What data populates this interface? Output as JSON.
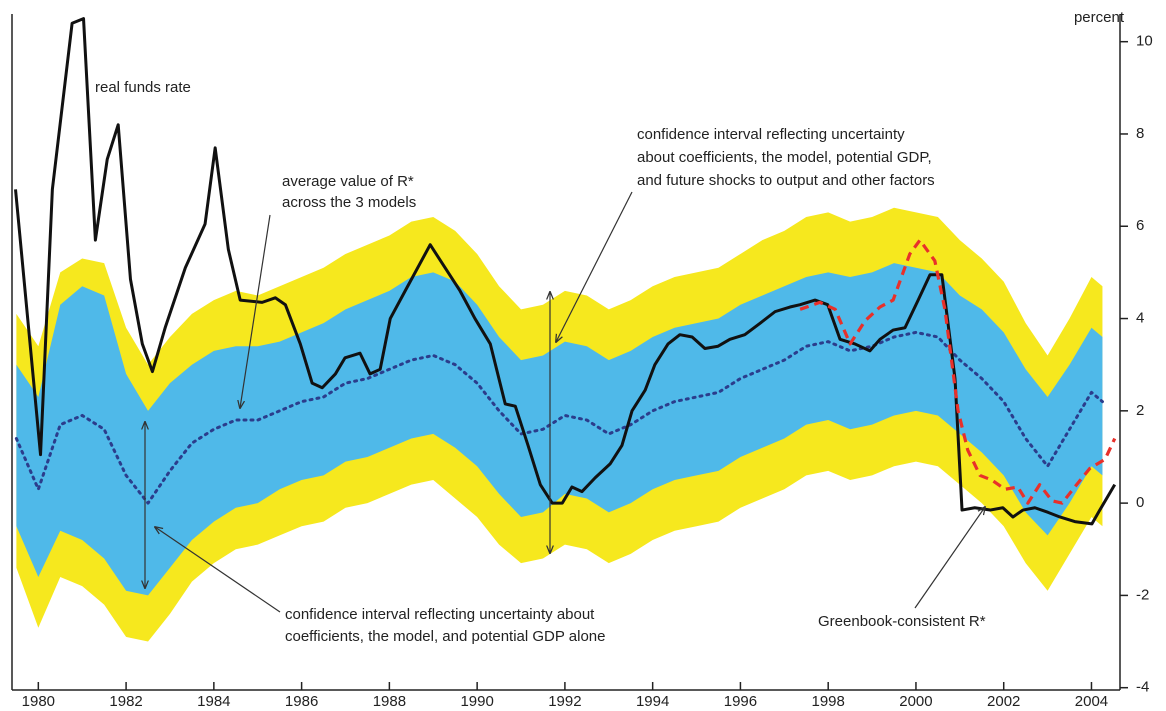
{
  "chart_data": {
    "type": "line",
    "y_label": "percent",
    "xlim": [
      1979.4,
      2004.65
    ],
    "ylim": [
      -4.05,
      10.6
    ],
    "xticks": [
      1980,
      1982,
      1984,
      1986,
      1988,
      1990,
      1992,
      1994,
      1996,
      1998,
      2000,
      2002,
      2004
    ],
    "yticks": [
      -4,
      -2,
      0,
      2,
      4,
      6,
      8,
      10
    ],
    "grid": false,
    "x": [
      1979.5,
      1980,
      1980.5,
      1981,
      1981.5,
      1982,
      1982.5,
      1983,
      1983.5,
      1984,
      1984.5,
      1985,
      1985.5,
      1986,
      1986.5,
      1987,
      1987.5,
      1988,
      1988.5,
      1989,
      1989.5,
      1990,
      1990.5,
      1991,
      1991.5,
      1992,
      1992.5,
      1993,
      1993.5,
      1994,
      1994.5,
      1995,
      1995.5,
      1996,
      1996.5,
      1997,
      1997.5,
      1998,
      1998.5,
      1999,
      1999.5,
      2000,
      2000.5,
      2001,
      2001.5,
      2002,
      2002.5,
      2003,
      2003.5,
      2004,
      2004.25
    ],
    "bands": [
      {
        "color": "#f6e81e",
        "upper": [
          4.1,
          3.4,
          5.0,
          5.3,
          5.2,
          3.8,
          3.0,
          3.6,
          4.1,
          4.4,
          4.6,
          4.5,
          4.7,
          4.9,
          5.1,
          5.4,
          5.6,
          5.8,
          6.1,
          6.2,
          5.9,
          5.4,
          4.7,
          4.2,
          4.3,
          4.6,
          4.5,
          4.2,
          4.4,
          4.7,
          4.9,
          5.0,
          5.1,
          5.4,
          5.7,
          5.9,
          6.2,
          6.3,
          6.1,
          6.2,
          6.4,
          6.3,
          6.2,
          5.7,
          5.3,
          4.8,
          3.9,
          3.2,
          4.0,
          4.9,
          4.7
        ],
        "lower": [
          -1.4,
          -2.7,
          -1.6,
          -1.8,
          -2.2,
          -2.9,
          -3.0,
          -2.4,
          -1.7,
          -1.3,
          -1.0,
          -0.9,
          -0.7,
          -0.5,
          -0.4,
          -0.1,
          0.0,
          0.2,
          0.4,
          0.5,
          0.1,
          -0.3,
          -0.9,
          -1.3,
          -1.2,
          -0.9,
          -1.0,
          -1.3,
          -1.1,
          -0.8,
          -0.6,
          -0.5,
          -0.4,
          -0.1,
          0.1,
          0.3,
          0.6,
          0.7,
          0.5,
          0.6,
          0.8,
          0.9,
          0.8,
          0.4,
          0.0,
          -0.5,
          -1.3,
          -1.9,
          -1.1,
          -0.3,
          -0.5
        ]
      },
      {
        "color": "#4fb9e9",
        "upper": [
          3.0,
          2.3,
          4.3,
          4.7,
          4.5,
          2.8,
          2.0,
          2.6,
          3.0,
          3.3,
          3.4,
          3.4,
          3.5,
          3.7,
          3.9,
          4.2,
          4.4,
          4.6,
          4.9,
          5.0,
          4.8,
          4.3,
          3.6,
          3.1,
          3.2,
          3.5,
          3.4,
          3.1,
          3.3,
          3.6,
          3.8,
          3.9,
          4.0,
          4.3,
          4.5,
          4.7,
          4.9,
          5.0,
          4.9,
          5.0,
          5.2,
          5.1,
          5.0,
          4.5,
          4.2,
          3.7,
          2.9,
          2.3,
          3.0,
          3.8,
          3.6
        ],
        "lower": [
          -0.5,
          -1.6,
          -0.6,
          -0.8,
          -1.2,
          -1.9,
          -2.0,
          -1.4,
          -0.8,
          -0.4,
          -0.1,
          0.0,
          0.3,
          0.5,
          0.6,
          0.9,
          1.0,
          1.2,
          1.4,
          1.5,
          1.2,
          0.8,
          0.2,
          -0.3,
          -0.2,
          0.2,
          0.1,
          -0.2,
          0.0,
          0.3,
          0.5,
          0.6,
          0.7,
          1.0,
          1.2,
          1.4,
          1.7,
          1.8,
          1.6,
          1.7,
          1.9,
          2.0,
          1.9,
          1.5,
          1.1,
          0.6,
          -0.2,
          -0.7,
          0.0,
          0.8,
          0.6
        ]
      }
    ],
    "series": [
      {
        "color": "#2b3d8c",
        "style": "dotted",
        "values": [
          1.4,
          0.3,
          1.7,
          1.9,
          1.6,
          0.6,
          0.0,
          0.7,
          1.3,
          1.6,
          1.8,
          1.8,
          2.0,
          2.2,
          2.3,
          2.6,
          2.7,
          2.9,
          3.1,
          3.2,
          3.0,
          2.6,
          2.0,
          1.5,
          1.6,
          1.9,
          1.8,
          1.5,
          1.7,
          2.0,
          2.2,
          2.3,
          2.4,
          2.7,
          2.9,
          3.1,
          3.4,
          3.5,
          3.3,
          3.4,
          3.6,
          3.7,
          3.6,
          3.1,
          2.7,
          2.2,
          1.4,
          0.8,
          1.6,
          2.4,
          2.2
        ]
      },
      {
        "color": "#111111",
        "style": "solid",
        "x": [
          1979.48,
          1980.05,
          1980.32,
          1980.77,
          1981.03,
          1981.3,
          1981.57,
          1981.82,
          1982.1,
          1982.37,
          1982.6,
          1982.89,
          1983.35,
          1983.8,
          1984.03,
          1984.33,
          1984.6,
          1985.1,
          1985.4,
          1985.63,
          1985.97,
          1986.24,
          1986.47,
          1986.77,
          1986.99,
          1987.33,
          1987.56,
          1987.79,
          1988.02,
          1988.36,
          1988.93,
          1989.61,
          1989.95,
          1990.3,
          1990.64,
          1990.87,
          1991.16,
          1991.44,
          1991.71,
          1991.94,
          1992.16,
          1992.39,
          1992.69,
          1993.03,
          1993.3,
          1993.53,
          1993.83,
          1994.05,
          1994.35,
          1994.62,
          1994.9,
          1995.19,
          1995.49,
          1995.76,
          1996.1,
          1996.45,
          1996.79,
          1997.13,
          1997.36,
          1997.7,
          1997.99,
          1998.27,
          1998.61,
          1998.95,
          1999.18,
          1999.48,
          1999.75,
          2000.05,
          2000.32,
          2000.59,
          2000.89,
          2001.05,
          2001.34,
          2001.69,
          2001.98,
          2002.21,
          2002.44,
          2002.71,
          2003.01,
          2003.28,
          2003.62,
          2004.01,
          2004.19,
          2004.53
        ],
        "values": [
          6.8,
          1.05,
          6.8,
          10.4,
          10.5,
          5.7,
          7.45,
          8.2,
          4.85,
          3.45,
          2.85,
          3.8,
          5.1,
          6.05,
          7.7,
          5.5,
          4.4,
          4.35,
          4.45,
          4.3,
          3.45,
          2.6,
          2.5,
          2.8,
          3.15,
          3.25,
          2.8,
          2.9,
          4.0,
          4.6,
          5.6,
          4.6,
          4.0,
          3.45,
          2.15,
          2.1,
          1.25,
          0.4,
          0.0,
          0.0,
          0.35,
          0.25,
          0.55,
          0.85,
          1.25,
          2.0,
          2.45,
          3.0,
          3.45,
          3.65,
          3.6,
          3.35,
          3.4,
          3.55,
          3.65,
          3.9,
          4.15,
          4.25,
          4.3,
          4.4,
          4.3,
          3.55,
          3.45,
          3.3,
          3.55,
          3.75,
          3.8,
          4.4,
          4.95,
          4.95,
          2.7,
          -0.15,
          -0.1,
          -0.15,
          -0.1,
          -0.3,
          -0.15,
          -0.1,
          -0.2,
          -0.3,
          -0.4,
          -0.45,
          -0.15,
          0.4
        ]
      },
      {
        "color": "#e8302a",
        "style": "dashed",
        "x": [
          1997.36,
          1997.81,
          1998.16,
          1998.5,
          1998.84,
          1999.18,
          1999.48,
          1999.86,
          2000.09,
          2000.43,
          2000.66,
          2000.96,
          2001.18,
          2001.46,
          2001.73,
          2002.03,
          2002.32,
          2002.55,
          2002.82,
          2003.1,
          2003.33,
          2003.62,
          2003.96,
          2004.31,
          2004.53
        ],
        "values": [
          4.2,
          4.35,
          4.2,
          3.45,
          3.95,
          4.25,
          4.4,
          5.4,
          5.7,
          5.25,
          4.2,
          2.0,
          1.15,
          0.6,
          0.5,
          0.3,
          0.35,
          0.0,
          0.4,
          0.05,
          0.0,
          0.35,
          0.75,
          0.95,
          1.4
        ]
      }
    ],
    "annotations": [
      {
        "text": [
          "real funds rate"
        ]
      },
      {
        "text": [
          "average value of R*",
          "across the 3 models"
        ]
      },
      {
        "text": [
          "confidence interval reflecting uncertainty",
          "about coefficients, the model, potential GDP,",
          "and future shocks to output and other factors"
        ]
      },
      {
        "text": [
          "confidence interval reflecting uncertainty about",
          "coefficients, the model, and potential GDP alone"
        ]
      },
      {
        "text": [
          "Greenbook-consistent R*"
        ]
      }
    ]
  }
}
